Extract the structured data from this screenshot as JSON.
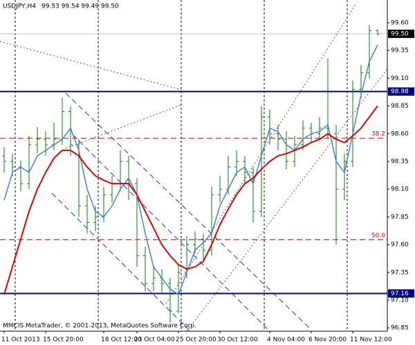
{
  "chart_data": {
    "type": "ohlc",
    "title": "USDJPY,H4",
    "subtitle": "99.53 99.54 99.49 99.50",
    "footer": "MMCIS MetaTrader, © 2001-2013, MetaQuotes Software Corp.",
    "color": "#008000",
    "categories": [
      "11 Oct 2013",
      null,
      null,
      null,
      null,
      "15 Oct 20:00",
      null,
      null,
      null,
      null,
      null,
      null,
      "18 Oct 12:00",
      null,
      null,
      null,
      "23 Oct 04:00",
      null,
      null,
      null,
      null,
      "25 Oct 20:00",
      null,
      null,
      null,
      null,
      "30 Oct 12:00",
      null,
      null,
      null,
      null,
      null,
      "4 Nov 04:00",
      null,
      null,
      null,
      null,
      "6 Nov 20:00",
      null,
      null,
      null,
      null,
      "11 Nov 12:00",
      null,
      null,
      null
    ],
    "ohlc": {
      "open": [
        98.4,
        98.35,
        98.3,
        98.15,
        98.5,
        98.55,
        98.5,
        98.55,
        98.8,
        98.5,
        97.95,
        97.8,
        97.85,
        98.05,
        98.15,
        98.35,
        98.15,
        97.5,
        97.25,
        97.3,
        97.25,
        97.0,
        97.35,
        97.6,
        97.65,
        97.55,
        98.05,
        98.1,
        98.3,
        98.35,
        98.25,
        97.9,
        98.75,
        98.6,
        98.55,
        98.35,
        98.5,
        98.65,
        98.6,
        98.65,
        98.6,
        98.1,
        98.35,
        99.0,
        99.15,
        99.53
      ],
      "high": [
        98.48,
        98.42,
        98.36,
        98.58,
        98.66,
        98.62,
        98.7,
        98.92,
        98.85,
        98.55,
        98.05,
        97.95,
        98.12,
        98.22,
        98.45,
        98.4,
        98.2,
        97.58,
        97.4,
        97.38,
        97.3,
        97.42,
        97.68,
        97.72,
        97.7,
        98.12,
        98.22,
        98.4,
        98.45,
        98.4,
        98.3,
        98.85,
        98.82,
        98.68,
        98.62,
        98.58,
        98.72,
        98.7,
        98.75,
        99.28,
        98.68,
        98.42,
        99.08,
        99.22,
        99.58,
        99.54
      ],
      "low": [
        98.25,
        98.22,
        98.08,
        98.1,
        98.42,
        98.4,
        98.45,
        98.5,
        98.4,
        97.85,
        97.7,
        97.72,
        97.8,
        97.98,
        98.08,
        98.0,
        97.4,
        97.18,
        97.18,
        97.15,
        96.9,
        96.98,
        97.3,
        97.52,
        97.45,
        97.5,
        97.98,
        98.05,
        98.22,
        98.15,
        97.8,
        97.85,
        98.5,
        98.45,
        98.28,
        98.3,
        98.45,
        98.52,
        98.55,
        98.55,
        97.6,
        98.0,
        98.3,
        98.92,
        99.1,
        99.49
      ],
      "close": [
        98.35,
        98.3,
        98.15,
        98.5,
        98.55,
        98.5,
        98.55,
        98.8,
        98.5,
        97.95,
        97.8,
        97.85,
        98.05,
        98.15,
        98.35,
        98.15,
        97.5,
        97.25,
        97.3,
        97.25,
        97.0,
        97.35,
        97.6,
        97.65,
        97.55,
        98.05,
        98.1,
        98.3,
        98.35,
        98.25,
        97.9,
        98.75,
        98.6,
        98.55,
        98.35,
        98.5,
        98.65,
        98.6,
        98.65,
        98.6,
        98.1,
        98.35,
        99.0,
        99.15,
        99.53,
        99.5
      ]
    },
    "series": [
      {
        "color": "#4a7fd0",
        "values": [
          98.0,
          98.25,
          98.3,
          98.25,
          98.4,
          98.45,
          98.5,
          98.55,
          98.65,
          98.45,
          98.1,
          97.9,
          97.85,
          97.95,
          98.1,
          98.2,
          98.05,
          97.7,
          97.4,
          97.3,
          97.2,
          97.15,
          97.35,
          97.55,
          97.62,
          97.7,
          97.95,
          98.1,
          98.25,
          98.3,
          98.15,
          98.4,
          98.65,
          98.62,
          98.5,
          98.45,
          98.55,
          98.6,
          98.62,
          98.68,
          98.35,
          98.25,
          98.6,
          98.95,
          99.25,
          99.4
        ]
      },
      {
        "color": "#e00000",
        "values": [
          97.15,
          97.4,
          97.65,
          97.9,
          98.1,
          98.25,
          98.38,
          98.45,
          98.45,
          98.4,
          98.3,
          98.22,
          98.18,
          98.15,
          98.15,
          98.15,
          98.05,
          97.9,
          97.75,
          97.6,
          97.5,
          97.42,
          97.38,
          97.4,
          97.45,
          97.6,
          97.78,
          97.92,
          98.05,
          98.15,
          98.2,
          98.28,
          98.35,
          98.4,
          98.42,
          98.45,
          98.48,
          98.52,
          98.55,
          98.6,
          98.55,
          98.52,
          98.58,
          98.65,
          98.75,
          98.85
        ]
      }
    ],
    "ylim": [
      96.82,
      99.805
    ],
    "yticks": [
      {
        "value": 99.6,
        "label": "99.60"
      },
      {
        "value": 99.35,
        "label": "99.35"
      },
      {
        "value": 99.1,
        "label": "99.10"
      },
      {
        "value": 98.85,
        "label": "98.85"
      },
      {
        "value": 98.6,
        "label": "98.60"
      },
      {
        "value": 98.35,
        "label": "98.35"
      },
      {
        "value": 98.1,
        "label": "98.10"
      },
      {
        "value": 97.85,
        "label": "97.85"
      },
      {
        "value": 97.6,
        "label": "97.60"
      },
      {
        "value": 97.35,
        "label": "97.35"
      },
      {
        "value": 97.1,
        "label": "97.10"
      },
      {
        "value": 96.85,
        "label": "96.85"
      }
    ],
    "bid": {
      "value": 99.5,
      "label": "99.50"
    },
    "levels": [
      {
        "value": 98.98,
        "label": "98.98"
      },
      {
        "value": 97.16,
        "label": "97.16"
      }
    ],
    "fib_levels": [
      {
        "value": 98.56,
        "label": "38.2"
      },
      {
        "value": 97.645,
        "label": "50.0"
      }
    ]
  }
}
